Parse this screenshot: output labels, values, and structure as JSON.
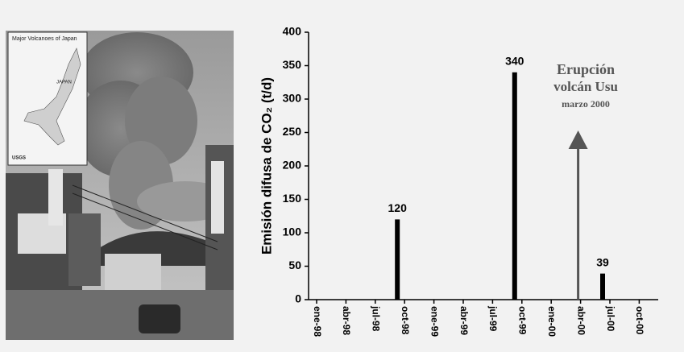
{
  "photo": {
    "map_title": "Major Volcanoes of Japan",
    "map_country": "JAPAN",
    "map_source": "USGS"
  },
  "chart_data": {
    "type": "bar",
    "y_label": "Emisión difusa de CO₂ (t/d)",
    "categories": [
      "ene-98",
      "abr-98",
      "jul-98",
      "oct-98",
      "ene-99",
      "abr-99",
      "jul-99",
      "oct-99",
      "ene-00",
      "abr-00",
      "jul-00",
      "oct-00"
    ],
    "values": [
      null,
      null,
      null,
      120,
      null,
      null,
      null,
      340,
      null,
      null,
      39,
      null
    ],
    "color": "#000000",
    "ylim": [
      0,
      400
    ],
    "yticks": [
      0,
      50,
      100,
      150,
      200,
      250,
      300,
      350,
      400
    ],
    "annotation": [
      "Erupción",
      "volcán Usu",
      "marzo 2000"
    ]
  }
}
